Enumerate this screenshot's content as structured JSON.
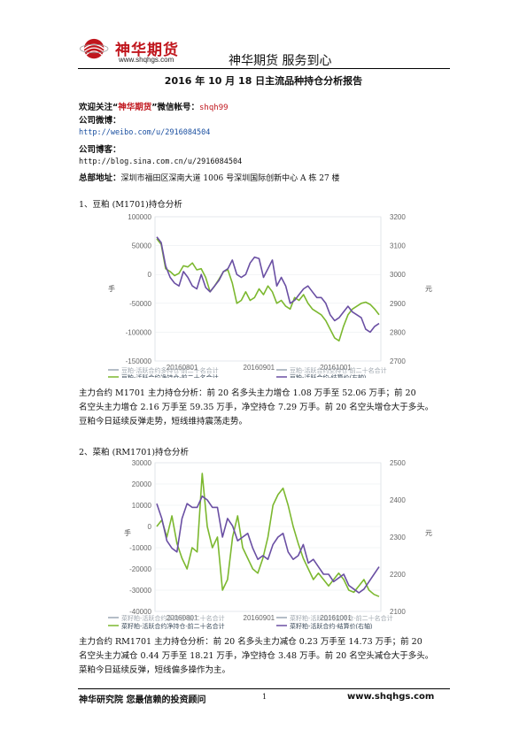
{
  "header": {
    "logo_cn": "神华期货",
    "logo_url": "www.shqhgs.com",
    "slogan": "神华期货   服务到心"
  },
  "report_title": "2016 年 10 月 18 日主流品种持仓分析报告",
  "contact": {
    "follow_prefix": "欢迎关注“",
    "follow_brand": "神华期货",
    "follow_suffix": "”微信帐号：",
    "wechat_id": "shqh99",
    "weibo_label": "公司微博：",
    "weibo_url": "http://weibo.com/u/2916084504",
    "blog_label": "公司博客：",
    "blog_url": "http://blog.sina.com.cn/u/2916084504",
    "address_label": "总部地址：",
    "address": "深圳市福田区深南大道 1006 号深圳国际创新中心 A 栋 27 楼"
  },
  "sections": [
    {
      "heading": "1、豆粕 (M1701)持仓分析",
      "analysis_lines": [
        "主力合约 M1701 主力持仓分析：前 20 名多头主力增仓 1.08 万手至 52.06 万手；前 20",
        "名空头主力增仓 2.16 万手至 59.35 万手，净空持仓 7.29 万手。前 20 名空头增仓大于多头。",
        "豆粕今日延续反弹走势，短线维持震荡走势。"
      ]
    },
    {
      "heading": "2、菜粕 (RM1701)持仓分析",
      "analysis_lines": [
        "主力合约 RM1701 主力持仓分析：前 20 名多头主力减仓 0.23 万手至 14.73 万手；前 20",
        "名空头主力减仓 0.44 万手至 18.21 万手，净空持仓 3.48 万手。前 20 名空头减仓大于多头。",
        "菜粕今日延续反弹，短线偏多操作为主。"
      ]
    }
  ],
  "chart_data": [
    {
      "type": "line",
      "title": "",
      "ylabel": "手",
      "y2label": "元",
      "ylim": [
        -150000,
        100000
      ],
      "y2lim": [
        2700,
        3200
      ],
      "y_ticks": [
        "100000",
        "50000",
        "0",
        "-50000",
        "-100000",
        "-150000"
      ],
      "y2_ticks": [
        "3200",
        "3100",
        "3000",
        "2900",
        "2800",
        "2700"
      ],
      "x_ticks": [
        "20160801",
        "20160901",
        "20161001"
      ],
      "legend": [
        "豆粕-活跃合约多持仓-前二十名合计",
        "豆粕-活跃合约空持仓-前二十名合计",
        "豆粕-活跃合约净持仓-前二十名合计",
        "豆粕-活跃合约-结算价(右轴)"
      ],
      "series": [
        {
          "name": "豆粕-活跃合约净持仓-前二十名合计",
          "color": "#7cb82f",
          "axis": "left",
          "values": [
            62000,
            52000,
            10000,
            5000,
            -2000,
            2000,
            15000,
            13000,
            20000,
            8000,
            10000,
            -5000,
            -30000,
            -20000,
            -8000,
            5000,
            8000,
            -15000,
            -50000,
            -45000,
            -30000,
            -45000,
            -40000,
            -25000,
            -35000,
            -20000,
            -30000,
            -50000,
            -45000,
            -55000,
            -60000,
            -40000,
            -45000,
            -35000,
            -50000,
            -60000,
            -65000,
            -70000,
            -80000,
            -95000,
            -110000,
            -115000,
            -90000,
            -70000,
            -60000,
            -55000,
            -50000,
            -48000,
            -52000,
            -60000,
            -70000
          ]
        },
        {
          "name": "豆粕-活跃合约-结算价(右轴)",
          "color": "#6a4fa3",
          "axis": "right",
          "values": [
            3130,
            3110,
            3030,
            2990,
            2970,
            2960,
            3010,
            2990,
            2960,
            2950,
            3000,
            2955,
            2940,
            2960,
            2980,
            3010,
            3020,
            3050,
            3000,
            2990,
            3000,
            3040,
            3060,
            3055,
            2990,
            3020,
            3050,
            2960,
            2990,
            2960,
            2900,
            2910,
            2930,
            2950,
            2960,
            2940,
            2920,
            2920,
            2900,
            2860,
            2840,
            2850,
            2870,
            2890,
            2870,
            2860,
            2850,
            2810,
            2800,
            2820,
            2830
          ]
        }
      ]
    },
    {
      "type": "line",
      "title": "",
      "ylabel": "手",
      "y2label": "元",
      "ylim": [
        -40000,
        30000
      ],
      "y2lim": [
        2100,
        2500
      ],
      "y_ticks": [
        "30000",
        "20000",
        "10000",
        "0",
        "-10000",
        "-20000",
        "-30000",
        "-40000"
      ],
      "y2_ticks": [
        "2500",
        "2400",
        "2300",
        "2200",
        "2100"
      ],
      "x_ticks": [
        "20160801",
        "20160901",
        "20161001"
      ],
      "legend": [
        "菜籽粕-活跃合约多持仓-前二十名合计",
        "菜籽粕-活跃合约空持仓-前二十名合计",
        "菜籽粕-活跃合约净持仓-前二十名合计",
        "菜籽粕-活跃合约-结算价(右轴)"
      ],
      "series": [
        {
          "name": "菜籽粕-活跃合约净持仓-前二十名合计",
          "color": "#7cb82f",
          "axis": "left",
          "values": [
            0,
            3000,
            -5000,
            5000,
            -8000,
            -15000,
            -20000,
            -10000,
            -12000,
            25000,
            0,
            -10000,
            -5000,
            -30000,
            -25000,
            -5000,
            5000,
            -10000,
            -15000,
            -20000,
            -22000,
            -15000,
            -5000,
            10000,
            15000,
            18000,
            10000,
            0,
            -8000,
            -15000,
            -20000,
            -25000,
            -22000,
            -25000,
            -28000,
            -25000,
            -22000,
            -25000,
            -30000,
            -31000,
            -28000,
            -25000,
            -30000,
            -32000,
            -33000
          ]
        },
        {
          "name": "菜籽粕-活跃合约-结算价(右轴)",
          "color": "#6a4fa3",
          "axis": "right",
          "values": [
            2390,
            2350,
            2290,
            2270,
            2260,
            2350,
            2390,
            2380,
            2380,
            2410,
            2400,
            2380,
            2380,
            2300,
            2350,
            2330,
            2290,
            2300,
            2310,
            2270,
            2240,
            2250,
            2240,
            2280,
            2300,
            2310,
            2260,
            2240,
            2250,
            2280,
            2230,
            2240,
            2220,
            2200,
            2200,
            2180,
            2190,
            2200,
            2170,
            2160,
            2150,
            2160,
            2180,
            2200,
            2220
          ]
        }
      ]
    }
  ],
  "footer": {
    "left": "神华研究院    您最信赖的投资顾问",
    "page": "1",
    "right": "www.shqhgs.com"
  }
}
